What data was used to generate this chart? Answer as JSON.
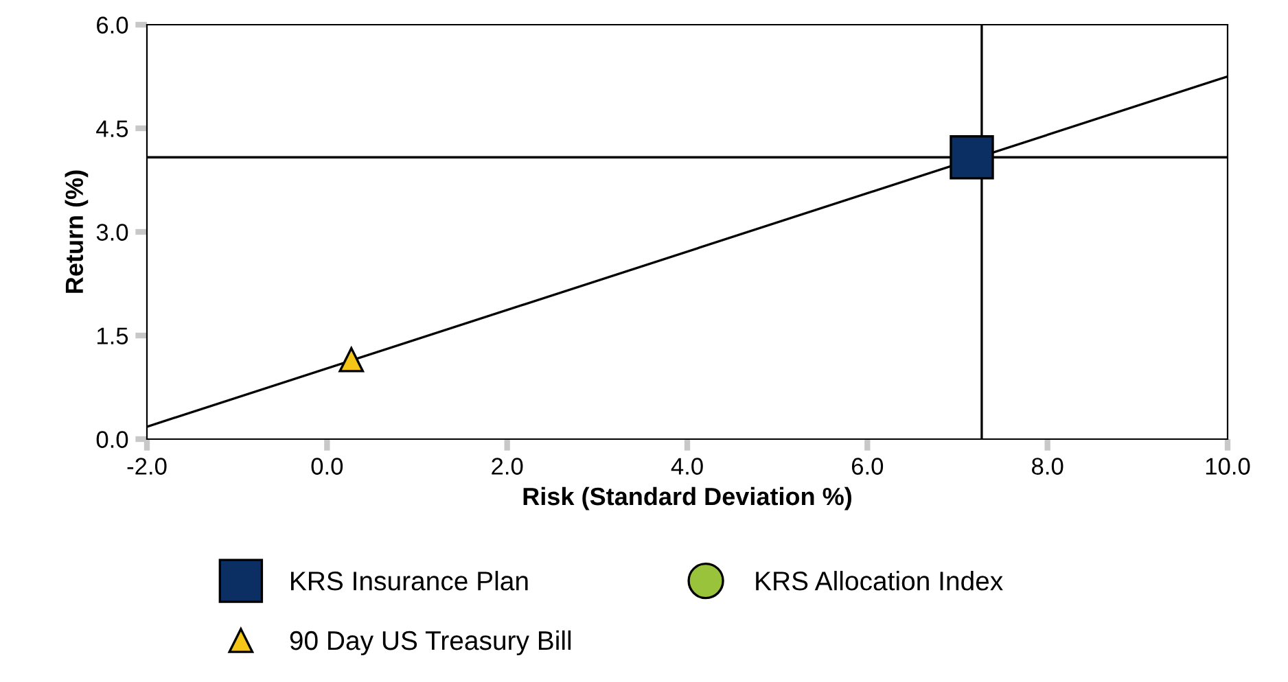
{
  "chart_data": {
    "type": "scatter",
    "xlabel": "Risk (Standard Deviation %)",
    "ylabel": "Return (%)",
    "xlim": [
      -2.0,
      10.0
    ],
    "xticks": [
      {
        "value": -2,
        "label": "-2.0"
      },
      {
        "value": 0,
        "label": "0.0"
      },
      {
        "value": 2,
        "label": "2.0"
      },
      {
        "value": 4,
        "label": "4.0"
      },
      {
        "value": 6,
        "label": "6.0"
      },
      {
        "value": 8,
        "label": "8.0"
      },
      {
        "value": 10,
        "label": "10.0"
      }
    ],
    "ylim": [
      0.0,
      6.0
    ],
    "yticks": [
      {
        "value": 0,
        "label": "0.0"
      },
      {
        "value": 1.5,
        "label": "1.5"
      },
      {
        "value": 3,
        "label": "3.0"
      },
      {
        "value": 4.5,
        "label": "4.5"
      },
      {
        "value": 6,
        "label": "6.0"
      }
    ],
    "grid": false,
    "legend": "bottom",
    "series": [
      {
        "type": "line",
        "color": "#000000",
        "x": [
          -2.0,
          10.0
        ],
        "values": [
          0.18,
          5.25
        ],
        "marker": "none"
      },
      {
        "name": "KRS Insurance Plan",
        "color": "#0b2f63",
        "x": [
          7.16
        ],
        "values": [
          4.08
        ],
        "marker": "square"
      },
      {
        "name": "KRS Allocation Index",
        "color": "#9ac33c",
        "marker": "circle"
      },
      {
        "name": "90 Day US Treasury Bill",
        "color": "#f5c518",
        "x": [
          0.27
        ],
        "values": [
          1.15
        ],
        "marker": "triangle"
      }
    ],
    "ref_lines": [
      {
        "axis": "x",
        "value": 7.27,
        "color": "#000000"
      },
      {
        "axis": "y",
        "value": 4.08,
        "color": "#000000"
      }
    ]
  }
}
